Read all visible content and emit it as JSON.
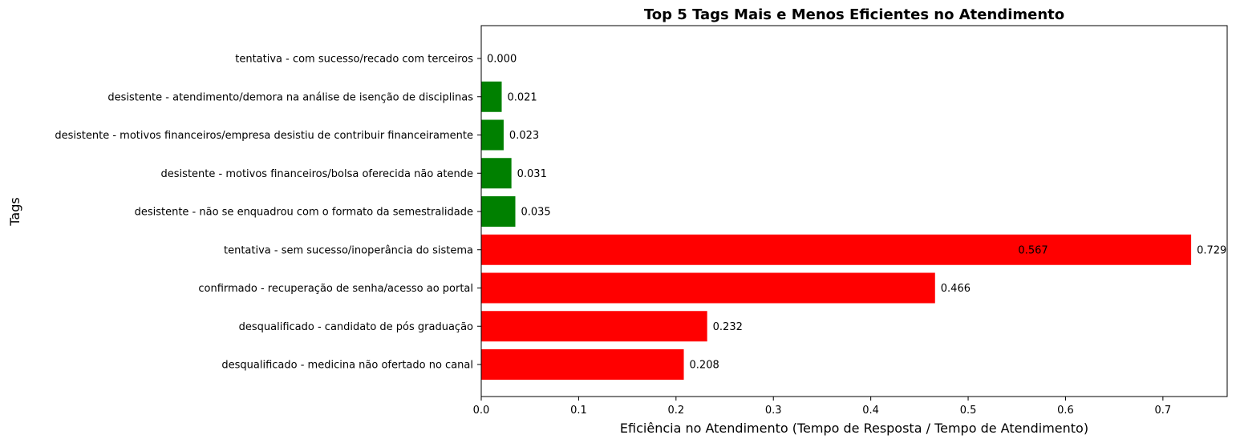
{
  "chart_data": {
    "type": "bar",
    "orientation": "horizontal",
    "title": "Top 5 Tags Mais e Menos Eficientes no Atendimento",
    "xlabel": "Eficiência no Atendimento (Tempo de Resposta / Tempo de Atendimento)",
    "ylabel": "Tags",
    "xlim": [
      0,
      0.766
    ],
    "xticks": [
      0.0,
      0.1,
      0.2,
      0.3,
      0.4,
      0.5,
      0.6,
      0.7
    ],
    "xtick_labels": [
      "0.0",
      "0.1",
      "0.2",
      "0.3",
      "0.4",
      "0.5",
      "0.6",
      "0.7"
    ],
    "grid": false,
    "categories": [
      "tentativa - com sucesso/recado com terceiros",
      "desistente - atendimento/demora na análise de isenção de disciplinas",
      "desistente - motivos financeiros/empresa desistiu de contribuir financeiramente",
      "desistente - motivos financeiros/bolsa oferecida não atende",
      "desistente - não se enquadrou com o formato da semestralidade",
      "tentativa - sem sucesso/inoperância do sistema",
      "confirmado - recuperação de senha/acesso ao portal",
      "desqualificado - candidato de pós graduação",
      "desqualificado - medicina não ofertado no canal"
    ],
    "values": [
      0.0,
      0.021,
      0.023,
      0.031,
      0.035,
      0.729,
      0.466,
      0.232,
      0.208
    ],
    "value_labels": [
      "0.000",
      "0.021",
      "0.023",
      "0.031",
      "0.035",
      "0.729",
      "0.466",
      "0.232",
      "0.208"
    ],
    "colors": [
      "#008000",
      "#008000",
      "#008000",
      "#008000",
      "#008000",
      "#ff0000",
      "#ff0000",
      "#ff0000",
      "#ff0000"
    ],
    "annotations": [
      {
        "text": "0.567",
        "x": 0.57,
        "category_index": 5
      }
    ]
  }
}
